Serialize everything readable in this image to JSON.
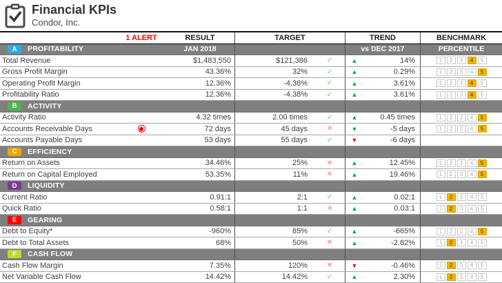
{
  "header": {
    "title": "Financial KPIs",
    "subtitle": "Condor, Inc."
  },
  "columns": {
    "alert": "1 ALERT",
    "result": "RESULT",
    "target": "TARGET",
    "trend": "TREND",
    "benchmark": "BENCHMARK"
  },
  "benchmark_scale": [
    "1",
    "2",
    "3",
    "4",
    "5"
  ],
  "icons": {
    "check": "✓",
    "cross": "✕",
    "up": "▲",
    "down": "▼"
  },
  "colors": {
    "trend_up_good": "#00A651",
    "trend_down_bad": "#FF0000",
    "check": "#5FC768",
    "cross": "#F4736B",
    "benchmark_highlight": "#F2B600",
    "section_bar": "#7F7F7F",
    "alert": "#FF0000"
  },
  "sections": [
    {
      "letter": "A",
      "name": "PROFITABILITY",
      "color": "#2FABE1",
      "period": "JAN 2018",
      "trend_period": "vs DEC 2017",
      "benchmark_label": "PERCENTILE",
      "rows": [
        {
          "name": "Total Revenue",
          "result": "$1,483,550",
          "target": "$121,386",
          "target_met": true,
          "trend_dir": "up",
          "trend_good": true,
          "trend": "14%",
          "benchmark": 4
        },
        {
          "name": "Gross Profit Margin",
          "result": "43.36%",
          "target": "32%",
          "target_met": true,
          "trend_dir": "up",
          "trend_good": true,
          "trend": "0.29%",
          "benchmark": 5
        },
        {
          "name": "Operating Profit Margin",
          "result": "12.36%",
          "target": "-4.38%",
          "target_met": true,
          "trend_dir": "up",
          "trend_good": true,
          "trend": "3.61%",
          "benchmark": 4
        },
        {
          "name": "Profitability Ratio",
          "result": "12.36%",
          "target": "-4.38%",
          "target_met": true,
          "trend_dir": "up",
          "trend_good": true,
          "trend": "3.61%",
          "benchmark": 4
        }
      ]
    },
    {
      "letter": "B",
      "name": "ACTIVITY",
      "color": "#4CB748",
      "rows": [
        {
          "name": "Activity Ratio",
          "result": "4.32 times",
          "target": "2.00 times",
          "target_met": true,
          "trend_dir": "up",
          "trend_good": true,
          "trend": "0.45 times",
          "benchmark": 5
        },
        {
          "name": "Accounts Receivable Days",
          "alert": true,
          "result": "72 days",
          "target": "45 days",
          "target_met": false,
          "trend_dir": "down",
          "trend_good": true,
          "trend": "-5 days",
          "benchmark": 5
        },
        {
          "name": "Accounts Payable Days",
          "result": "53 days",
          "target": "55 days",
          "target_met": true,
          "trend_dir": "down",
          "trend_good": false,
          "trend": "-6 days",
          "benchmark": null
        }
      ]
    },
    {
      "letter": "C",
      "name": "EFFICIENCY",
      "color": "#EFA506",
      "rows": [
        {
          "name": "Return on Assets",
          "result": "34.46%",
          "target": "25%",
          "target_met": false,
          "trend_dir": "up",
          "trend_good": true,
          "trend": "12.45%",
          "benchmark": 5
        },
        {
          "name": "Return on Capital Employed",
          "result": "53.35%",
          "target": "11%",
          "target_met": false,
          "trend_dir": "up",
          "trend_good": true,
          "trend": "19.46%",
          "benchmark": 5
        }
      ]
    },
    {
      "letter": "D",
      "name": "LIQUIDITY",
      "color": "#7C3A96",
      "rows": [
        {
          "name": "Current Ratio",
          "result": "0.91:1",
          "target": "2:1",
          "target_met": true,
          "trend_dir": "up",
          "trend_good": true,
          "trend": "0.02:1",
          "benchmark": 2
        },
        {
          "name": "Quick Ratio",
          "result": "0.58:1",
          "target": "1:1",
          "target_met": false,
          "trend_dir": "up",
          "trend_good": true,
          "trend": "0.03:1",
          "benchmark": 2
        }
      ]
    },
    {
      "letter": "E",
      "name": "GEARING",
      "color": "#FE0000",
      "rows": [
        {
          "name": "Debt to Equity*",
          "result": "-960%",
          "target": "85%",
          "target_met": true,
          "trend_dir": "up",
          "trend_good": true,
          "trend": "-665%",
          "benchmark": 5
        },
        {
          "name": "Debt to Total Assets",
          "result": "68%",
          "target": "50%",
          "target_met": false,
          "trend_dir": "up",
          "trend_good": true,
          "trend": "-2.82%",
          "benchmark": 2
        }
      ]
    },
    {
      "letter": "F",
      "name": "CASH FLOW",
      "color": "#BFD730",
      "rows": [
        {
          "name": "Cash Flow Margin",
          "result": "7.35%",
          "target": "120%",
          "target_met": false,
          "trend_dir": "down",
          "trend_good": false,
          "trend": "-0.46%",
          "benchmark": 2
        },
        {
          "name": "Net Variable Cash Flow",
          "result": "14.42%",
          "target": "14.42%",
          "target_met": true,
          "trend_dir": "up",
          "trend_good": true,
          "trend": "2.30%",
          "benchmark": 2
        }
      ]
    }
  ]
}
